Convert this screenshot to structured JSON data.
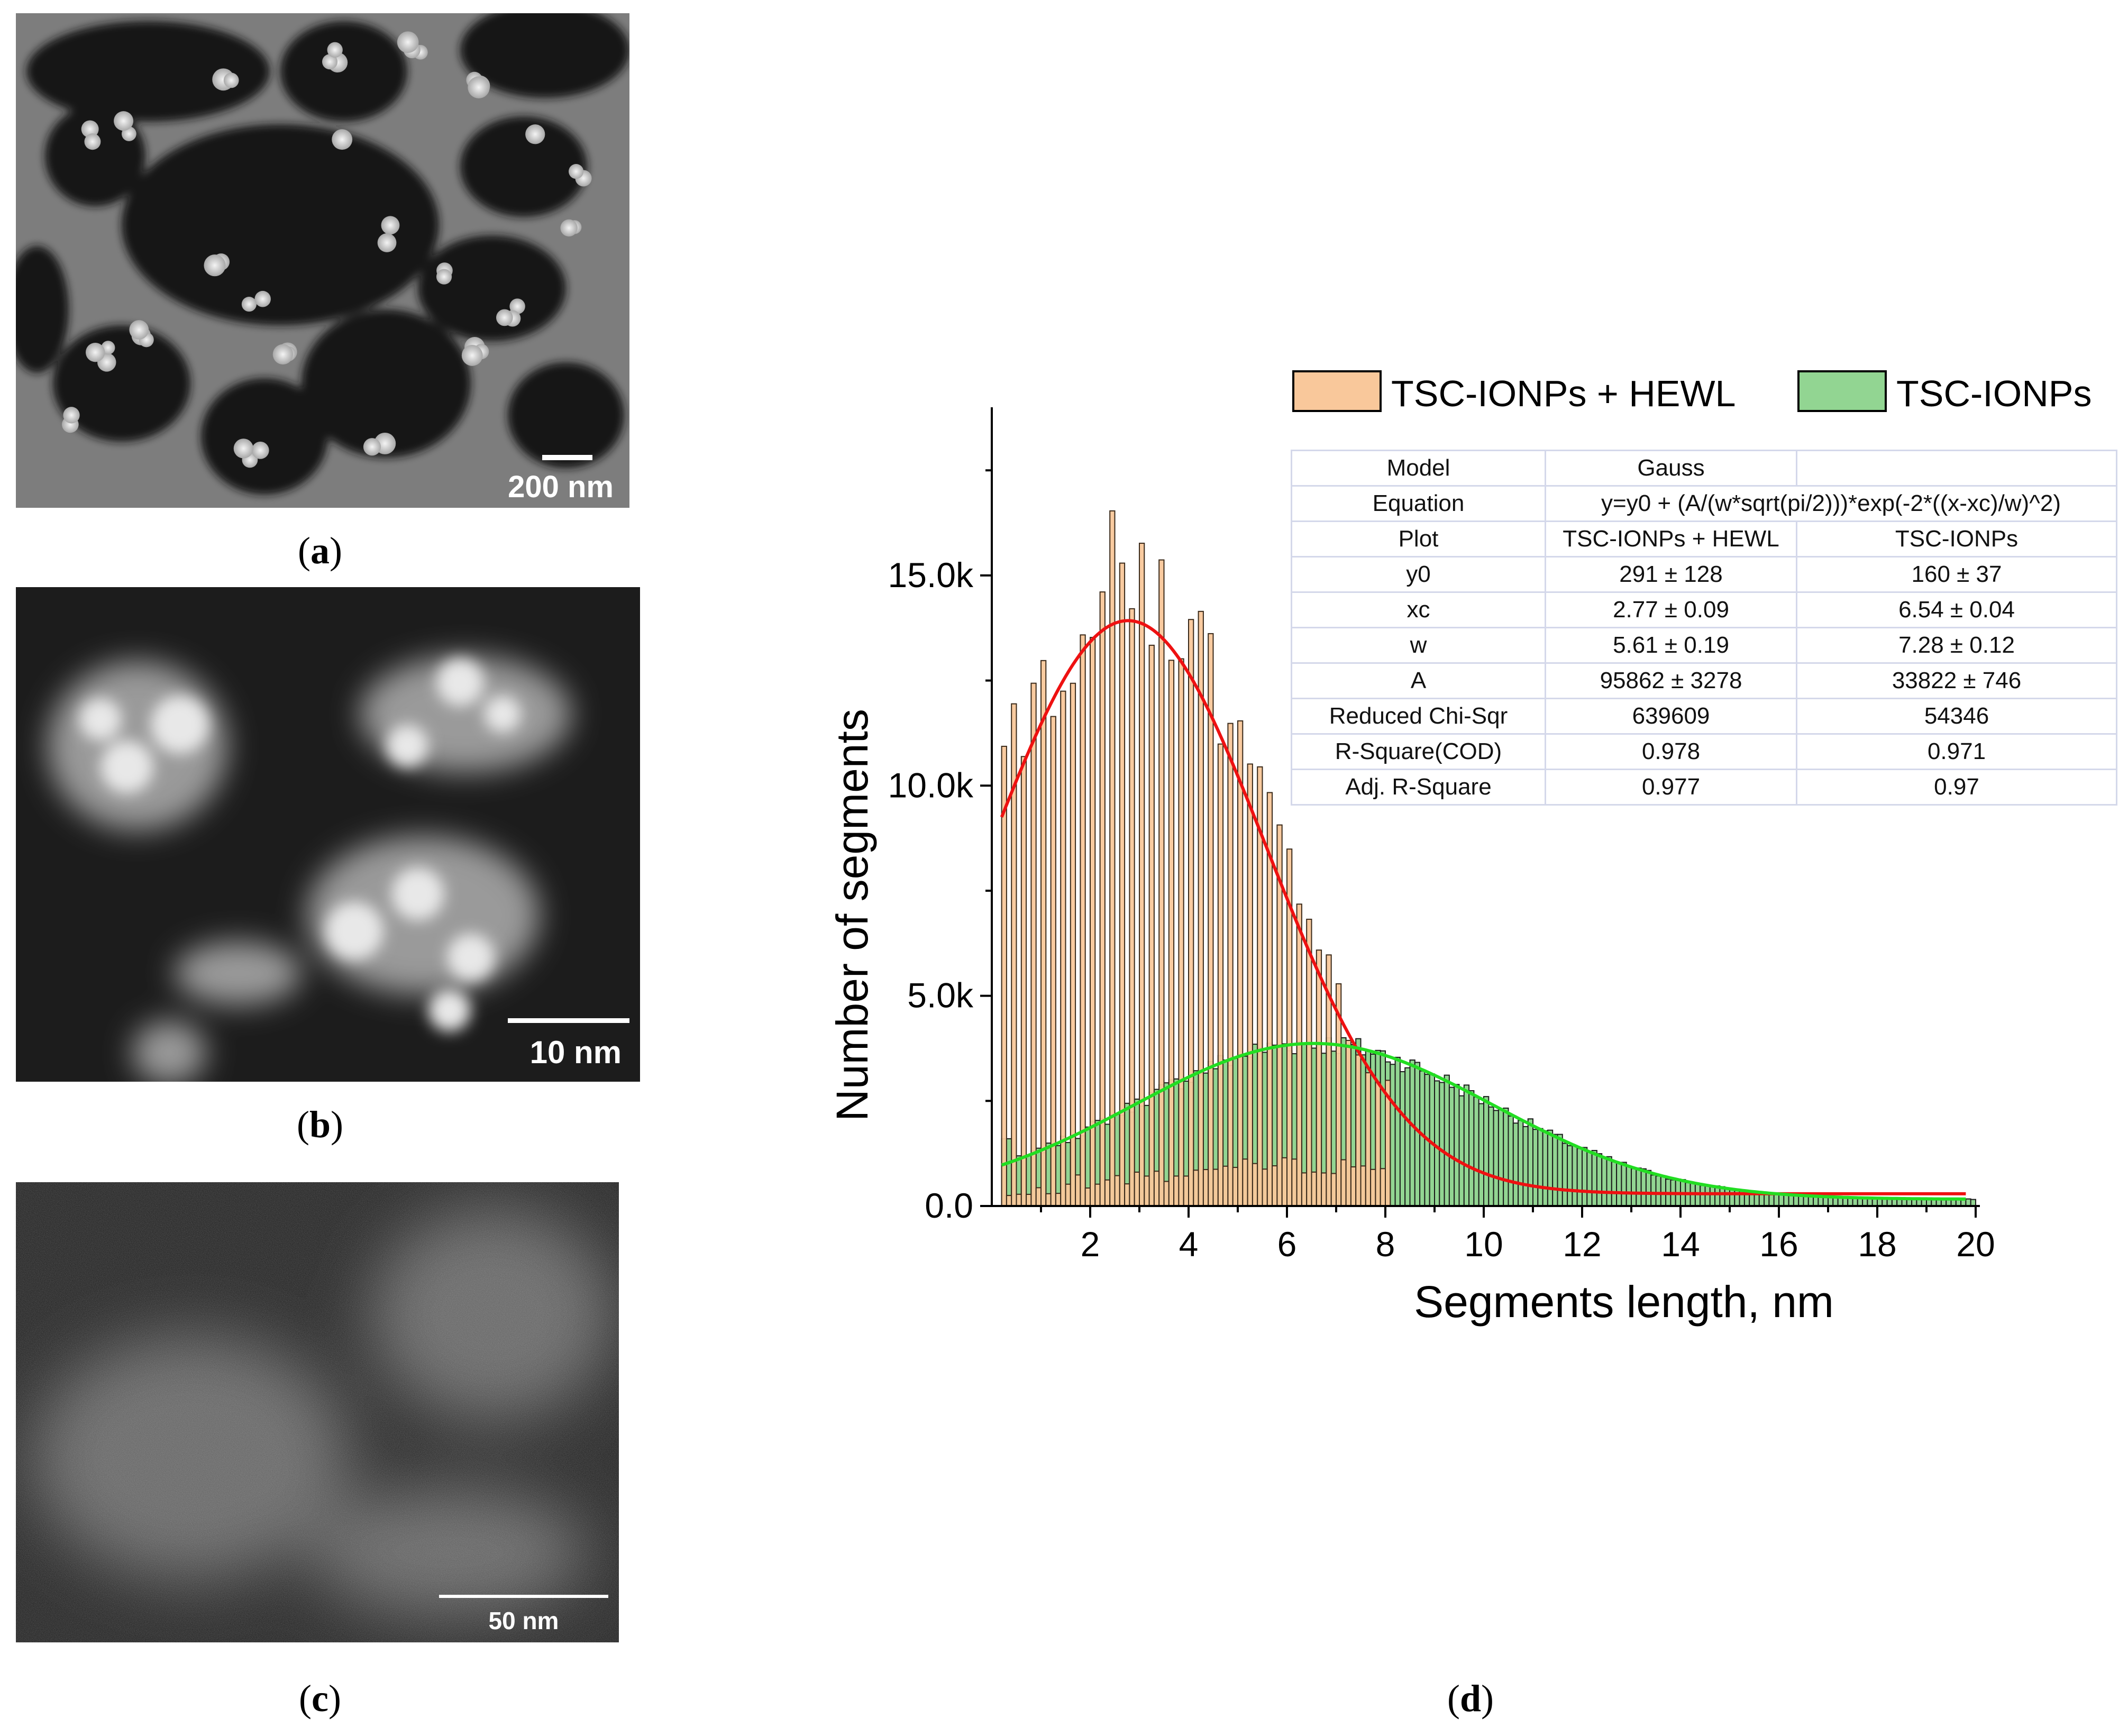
{
  "panels": {
    "a": {
      "label_open": "(",
      "label": "a",
      "label_close": ")",
      "scale_bar": "200 nm"
    },
    "b": {
      "label_open": "(",
      "label": "b",
      "label_close": ")",
      "scale_bar": "10 nm"
    },
    "c": {
      "label_open": "(",
      "label": "c",
      "label_close": ")",
      "scale_bar": "50 nm"
    },
    "d": {
      "label_open": "(",
      "label": "d",
      "label_close": ")"
    }
  },
  "colors": {
    "hewl_bar": "#f9c89b",
    "ionp_bar": "#92d592",
    "hewl_fit": "#ee1111",
    "ionp_fit": "#22dd22",
    "table_border": "#d4d8ea"
  },
  "chart_data": {
    "type": "bar",
    "xlabel": "Segments length, nm",
    "ylabel": "Number of segments",
    "xlim": [
      0,
      20
    ],
    "ylim": [
      0,
      19000
    ],
    "x_ticks": [
      2,
      4,
      6,
      8,
      10,
      12,
      14,
      16,
      18,
      20
    ],
    "y_ticks": [
      0,
      5000,
      10000,
      15000
    ],
    "y_tick_labels": [
      "0.0",
      "5.0k",
      "10.0k",
      "15.0k"
    ],
    "bin_width": 0.1,
    "legend": [
      {
        "name": "TSC-IONPs + HEWL",
        "color": "#f9c89b"
      },
      {
        "name": "TSC-IONPs",
        "color": "#92d592"
      }
    ],
    "series": [
      {
        "name": "TSC-IONPs + HEWL",
        "type": "histogram",
        "fit": {
          "model": "Gauss",
          "y0": 291,
          "xc": 2.77,
          "w": 5.61,
          "A": 95862
        }
      },
      {
        "name": "TSC-IONPs",
        "type": "histogram",
        "fit": {
          "model": "Gauss",
          "y0": 160,
          "xc": 6.54,
          "w": 7.28,
          "A": 33822
        }
      }
    ],
    "fit_table": {
      "rows": [
        [
          "Model",
          "Gauss",
          ""
        ],
        [
          "Equation",
          "y=y0 + (A/(w*sqrt(pi/2)))*exp(-2*((x-xc)/w)^2)",
          ""
        ],
        [
          "Plot",
          "TSC-IONPs + HEWL",
          "TSC-IONPs"
        ],
        [
          "y0",
          "291 ± 128",
          "160 ± 37"
        ],
        [
          "xc",
          "2.77 ± 0.09",
          "6.54 ± 0.04"
        ],
        [
          "w",
          "5.61 ± 0.19",
          "7.28 ± 0.12"
        ],
        [
          "A",
          "95862 ± 3278",
          "33822 ± 746"
        ],
        [
          "Reduced Chi-Sqr",
          "639609",
          "54346"
        ],
        [
          "R-Square(COD)",
          "0.978",
          "0.971"
        ],
        [
          "Adj. R-Square",
          "0.977",
          "0.97"
        ]
      ]
    }
  }
}
